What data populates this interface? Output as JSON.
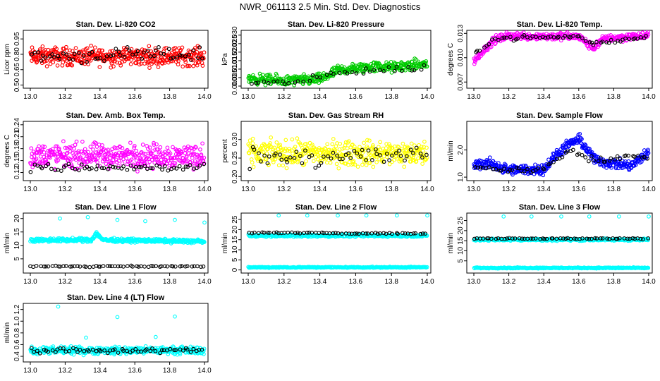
{
  "title": "NWR_061113  2.5 Min. Std. Dev. Diagnostics",
  "colors": {
    "red": "#ff0000",
    "green": "#00cc00",
    "magenta": "#ff00ff",
    "yellow": "#ffff00",
    "blue": "#0000ff",
    "cyan": "#00ffff",
    "black": "#000000"
  },
  "chart_data": [
    {
      "type": "scatter",
      "title": "Stan. Dev. Li-820 CO2",
      "ylabel": "Licor ppm",
      "xlim": [
        13.0,
        14.0
      ],
      "ylim": [
        0.49,
        1.02
      ],
      "xticks": [
        13.0,
        13.2,
        13.4,
        13.6,
        13.8,
        14.0
      ],
      "yticks": [
        0.5,
        0.65,
        0.8,
        0.95
      ],
      "ytick_labels": [
        "0.50",
        "0.65",
        "0.80",
        "0.95"
      ],
      "series": [
        {
          "name": "all",
          "color": "red",
          "segments": [
            [
              13.0,
              0.78
            ],
            [
              14.0,
              0.78
            ]
          ],
          "band": 0.13,
          "n": 420
        },
        {
          "name": "highlight",
          "color": "black",
          "segments": [
            [
              13.0,
              0.78
            ],
            [
              14.0,
              0.8
            ]
          ],
          "band": 0.1,
          "n": 60
        }
      ]
    },
    {
      "type": "scatter",
      "title": "Stan. Dev. Li-820 Pressure",
      "ylabel": "kPa",
      "xlim": [
        13.0,
        14.0
      ],
      "ylim": [
        0.0,
        0.032
      ],
      "xticks": [
        13.0,
        13.2,
        13.4,
        13.6,
        13.8,
        14.0
      ],
      "yticks": [
        0.0,
        0.005,
        0.01,
        0.015,
        0.02,
        0.025,
        0.03
      ],
      "ytick_labels": [
        "0.000",
        "0.005",
        "0.010",
        "0.015",
        "0.020",
        "0.025",
        "0.030"
      ],
      "series": [
        {
          "name": "all",
          "color": "green",
          "segments": [
            [
              13.0,
              0.0045
            ],
            [
              13.2,
              0.003
            ],
            [
              13.4,
              0.004
            ],
            [
              13.5,
              0.009
            ],
            [
              13.7,
              0.0115
            ],
            [
              13.8,
              0.011
            ],
            [
              14.0,
              0.013
            ]
          ],
          "band": 0.0045,
          "n": 420
        },
        {
          "name": "highlight",
          "color": "black",
          "segments": [
            [
              13.0,
              0.002
            ],
            [
              13.3,
              0.002
            ],
            [
              13.5,
              0.008
            ],
            [
              14.0,
              0.011
            ]
          ],
          "band": 0.003,
          "n": 40
        }
      ]
    },
    {
      "type": "scatter",
      "title": "Stan. Dev. Li-820 Temp.",
      "ylabel": "degrees C",
      "xlim": [
        13.0,
        14.0
      ],
      "ylim": [
        0.0065,
        0.0132
      ],
      "xticks": [
        13.0,
        13.2,
        13.4,
        13.6,
        13.8,
        14.0
      ],
      "yticks": [
        0.007,
        0.01,
        0.013
      ],
      "ytick_labels": [
        "0.007",
        "0.010",
        "0.013"
      ],
      "series": [
        {
          "name": "all",
          "color": "magenta",
          "segments": [
            [
              13.0,
              0.0095
            ],
            [
              13.05,
              0.0108
            ],
            [
              13.12,
              0.0122
            ],
            [
              13.2,
              0.0127
            ],
            [
              13.6,
              0.0126
            ],
            [
              13.68,
              0.0112
            ],
            [
              13.75,
              0.0124
            ],
            [
              14.0,
              0.0127
            ]
          ],
          "band": 0.0007,
          "n": 380
        },
        {
          "name": "highlight",
          "color": "black",
          "segments": [
            [
              13.0,
              0.0105
            ],
            [
              13.12,
              0.0124
            ],
            [
              13.6,
              0.0126
            ],
            [
              13.68,
              0.0117
            ],
            [
              14.0,
              0.0126
            ]
          ],
          "band": 0.0004,
          "n": 60
        }
      ]
    },
    {
      "type": "scatter",
      "title": "Stan. Dev. Amb. Box Temp.",
      "ylabel": "degrees C",
      "xlim": [
        13.0,
        14.0
      ],
      "ylim": [
        0.105,
        0.245
      ],
      "xticks": [
        13.0,
        13.2,
        13.4,
        13.6,
        13.8,
        14.0
      ],
      "yticks": [
        0.12,
        0.15,
        0.18,
        0.21,
        0.24
      ],
      "ytick_labels": [
        "0.12",
        "0.15",
        "0.18",
        "0.21",
        "0.24"
      ],
      "series": [
        {
          "name": "all",
          "color": "magenta",
          "segments": [
            [
              13.0,
              0.162
            ],
            [
              14.0,
              0.162
            ]
          ],
          "band": 0.045,
          "n": 420
        },
        {
          "name": "highlight",
          "color": "black",
          "segments": [
            [
              13.0,
              0.132
            ],
            [
              14.0,
              0.132
            ]
          ],
          "band": 0.015,
          "n": 60
        }
      ]
    },
    {
      "type": "scatter",
      "title": "Stan. Dev. Gas Stream RH",
      "ylabel": "percent",
      "xlim": [
        13.0,
        14.0
      ],
      "ylim": [
        0.195,
        0.345
      ],
      "xticks": [
        13.0,
        13.2,
        13.4,
        13.6,
        13.8,
        14.0
      ],
      "yticks": [
        0.2,
        0.25,
        0.3
      ],
      "ytick_labels": [
        "0.20",
        "0.25",
        "0.30"
      ],
      "series": [
        {
          "name": "all",
          "color": "yellow",
          "segments": [
            [
              13.0,
              0.262
            ],
            [
              14.0,
              0.262
            ]
          ],
          "band": 0.05,
          "n": 420
        },
        {
          "name": "highlight",
          "color": "black",
          "segments": [
            [
              13.0,
              0.255
            ],
            [
              14.0,
              0.255
            ]
          ],
          "band": 0.04,
          "n": 60
        }
      ]
    },
    {
      "type": "scatter",
      "title": "Stan. Dev. Sample Flow",
      "ylabel": "ml/min",
      "xlim": [
        13.0,
        14.0
      ],
      "ylim": [
        0.95,
        3.0
      ],
      "xticks": [
        13.0,
        13.2,
        13.4,
        13.6,
        13.8,
        14.0
      ],
      "yticks": [
        1.0,
        2.0
      ],
      "ytick_labels": [
        "1.0",
        "2.0"
      ],
      "series": [
        {
          "name": "all",
          "color": "blue",
          "segments": [
            [
              13.0,
              1.45
            ],
            [
              13.1,
              1.5
            ],
            [
              13.2,
              1.25
            ],
            [
              13.4,
              1.3
            ],
            [
              13.5,
              2.0
            ],
            [
              13.6,
              2.4
            ],
            [
              13.7,
              1.6
            ],
            [
              13.9,
              1.4
            ],
            [
              14.0,
              1.9
            ]
          ],
          "band": 0.28,
          "n": 420
        },
        {
          "name": "highlight",
          "color": "black",
          "segments": [
            [
              13.0,
              1.4
            ],
            [
              13.2,
              1.25
            ],
            [
              13.4,
              1.3
            ],
            [
              13.55,
              2.0
            ],
            [
              13.7,
              1.6
            ],
            [
              14.0,
              1.8
            ]
          ],
          "band": 0.15,
          "n": 60
        }
      ]
    },
    {
      "type": "scatter",
      "title": "Stan. Dev. Line 1 Flow",
      "ylabel": "ml/min",
      "xlim": [
        13.0,
        14.0
      ],
      "ylim": [
        0.5,
        21.5
      ],
      "xticks": [
        13.0,
        13.2,
        13.4,
        13.6,
        13.8,
        14.0
      ],
      "yticks": [
        5,
        10,
        15,
        20
      ],
      "ytick_labels": [
        "5",
        "10",
        "15",
        "20"
      ],
      "series": [
        {
          "name": "all",
          "color": "cyan",
          "segments": [
            [
              13.0,
              12.0
            ],
            [
              13.35,
              12.0
            ],
            [
              13.38,
              14.5
            ],
            [
              13.42,
              12.0
            ],
            [
              14.0,
              11.5
            ]
          ],
          "band": 1.0,
          "n": 420
        },
        {
          "name": "highlight",
          "color": "black",
          "segments": [
            [
              13.0,
              2.2
            ],
            [
              14.0,
              2.2
            ]
          ],
          "band": 0.3,
          "n": 60
        }
      ],
      "outliers": [
        [
          13.17,
          20.0
        ],
        [
          13.33,
          20.5
        ],
        [
          13.5,
          19.5
        ],
        [
          13.66,
          19.0
        ],
        [
          13.83,
          19.5
        ],
        [
          14.0,
          18.5
        ]
      ]
    },
    {
      "type": "scatter",
      "title": "Stan. Dev. Line 2 Flow",
      "ylabel": "ml/min",
      "xlim": [
        13.0,
        14.0
      ],
      "ylim": [
        -0.5,
        27.5
      ],
      "xticks": [
        13.0,
        13.2,
        13.4,
        13.6,
        13.8,
        14.0
      ],
      "yticks": [
        0,
        5,
        10,
        15,
        20,
        25
      ],
      "ytick_labels": [
        "0",
        "5",
        "10",
        "15",
        "20",
        "25"
      ],
      "series": [
        {
          "name": "all",
          "color": "cyan",
          "segments": [
            [
              13.0,
              17.0
            ],
            [
              14.0,
              17.0
            ]
          ],
          "band": 1.0,
          "n": 300
        },
        {
          "name": "low",
          "color": "cyan",
          "segments": [
            [
              13.0,
              1.3
            ],
            [
              14.0,
              1.3
            ]
          ],
          "band": 0.4,
          "n": 280
        },
        {
          "name": "highlight",
          "color": "black",
          "segments": [
            [
              13.0,
              18.5
            ],
            [
              14.0,
              18.0
            ]
          ],
          "band": 0.4,
          "n": 60
        }
      ],
      "outliers": [
        [
          13.17,
          27.0
        ],
        [
          13.33,
          27.0
        ],
        [
          13.5,
          27.0
        ],
        [
          13.66,
          27.0
        ],
        [
          13.83,
          27.0
        ],
        [
          14.0,
          27.0
        ]
      ]
    },
    {
      "type": "scatter",
      "title": "Stan. Dev. Line 3 Flow",
      "ylabel": "ml/min",
      "xlim": [
        13.0,
        14.0
      ],
      "ylim": [
        0.0,
        28.0
      ],
      "xticks": [
        13.0,
        13.2,
        13.4,
        13.6,
        13.8,
        14.0
      ],
      "yticks": [
        5,
        10,
        15,
        20,
        25
      ],
      "ytick_labels": [
        "5",
        "10",
        "15",
        "20",
        "25"
      ],
      "series": [
        {
          "name": "all",
          "color": "cyan",
          "segments": [
            [
              13.0,
              15.5
            ],
            [
              14.0,
              15.5
            ]
          ],
          "band": 0.8,
          "n": 280
        },
        {
          "name": "low",
          "color": "cyan",
          "segments": [
            [
              13.0,
              1.5
            ],
            [
              14.0,
              1.5
            ]
          ],
          "band": 0.4,
          "n": 280
        },
        {
          "name": "highlight",
          "color": "black",
          "segments": [
            [
              13.0,
              16.0
            ],
            [
              14.0,
              16.0
            ]
          ],
          "band": 0.4,
          "n": 60
        }
      ],
      "outliers": [
        [
          13.17,
          27.0
        ],
        [
          13.33,
          27.0
        ],
        [
          13.5,
          27.0
        ],
        [
          13.66,
          27.0
        ],
        [
          13.83,
          27.0
        ],
        [
          14.0,
          27.0
        ]
      ]
    },
    {
      "type": "scatter",
      "title": "Stan. Dev. Line 4 (LT) Flow",
      "ylabel": "ml/min",
      "xlim": [
        13.0,
        14.0
      ],
      "ylim": [
        0.34,
        1.28
      ],
      "xticks": [
        13.0,
        13.2,
        13.4,
        13.6,
        13.8,
        14.0
      ],
      "yticks": [
        0.4,
        0.6,
        0.8,
        1.0,
        1.2
      ],
      "ytick_labels": [
        "0.4",
        "0.6",
        "0.8",
        "1.0",
        "1.2"
      ],
      "series": [
        {
          "name": "all",
          "color": "cyan",
          "segments": [
            [
              13.0,
              0.5
            ],
            [
              14.0,
              0.5
            ]
          ],
          "band": 0.09,
          "n": 420
        },
        {
          "name": "highlight",
          "color": "black",
          "segments": [
            [
              13.0,
              0.5
            ],
            [
              14.0,
              0.5
            ]
          ],
          "band": 0.07,
          "n": 60
        }
      ],
      "outliers": [
        [
          13.16,
          1.25
        ],
        [
          13.5,
          1.07
        ],
        [
          13.83,
          1.08
        ],
        [
          13.32,
          0.72
        ],
        [
          13.72,
          0.73
        ]
      ]
    }
  ]
}
